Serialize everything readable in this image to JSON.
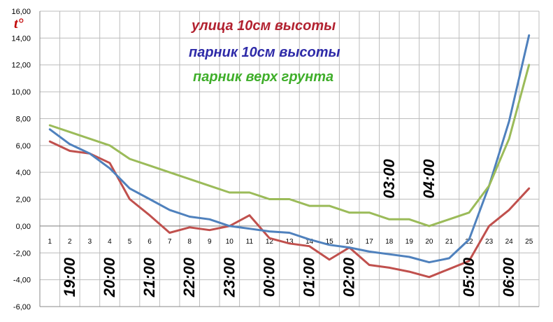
{
  "chart_data": {
    "type": "line",
    "ylabel": "t°",
    "ylim": [
      -6,
      16
    ],
    "ytick_step": 2,
    "yticks": [
      "-6,00",
      "-4,00",
      "-2,00",
      "0,00",
      "2,00",
      "4,00",
      "6,00",
      "8,00",
      "10,00",
      "12,00",
      "14,00",
      "16,00"
    ],
    "categories": [
      "1",
      "2",
      "3",
      "4",
      "5",
      "6",
      "7",
      "8",
      "9",
      "10",
      "11",
      "12",
      "13",
      "14",
      "15",
      "16",
      "17",
      "18",
      "19",
      "20",
      "21",
      "22",
      "23",
      "24",
      "25"
    ],
    "grid": true,
    "series": [
      {
        "name": "улица 10см высоты",
        "color": "#c0504d",
        "values": [
          6.3,
          5.6,
          5.4,
          4.7,
          2.0,
          0.8,
          -0.5,
          -0.1,
          -0.3,
          0.0,
          0.8,
          -0.9,
          -1.3,
          -1.5,
          -2.5,
          -1.6,
          -2.9,
          -3.1,
          -3.4,
          -3.8,
          -3.2,
          -2.6,
          0.0,
          1.2,
          2.8
        ]
      },
      {
        "name": "парник 10см высоты",
        "color": "#4f81bd",
        "values": [
          7.2,
          6.1,
          5.4,
          4.3,
          2.8,
          2.0,
          1.2,
          0.7,
          0.5,
          0.0,
          -0.2,
          -0.4,
          -0.5,
          -1.0,
          -1.4,
          -1.6,
          -1.9,
          -2.1,
          -2.3,
          -2.7,
          -2.4,
          -1.0,
          3.0,
          7.8,
          14.2
        ]
      },
      {
        "name": "парник верх грунта",
        "color": "#9bbb59",
        "values": [
          7.5,
          7.0,
          6.5,
          6.0,
          5.0,
          4.5,
          4.0,
          3.5,
          3.0,
          2.5,
          2.5,
          2.0,
          2.0,
          1.5,
          1.5,
          1.0,
          1.0,
          0.5,
          0.5,
          0.0,
          0.5,
          1.0,
          3.0,
          6.5,
          12.0
        ]
      }
    ],
    "legend_colors": [
      "#b22230",
      "#2e2aa8",
      "#3fae2a"
    ],
    "time_labels": [
      {
        "text": "19:00",
        "x": 2,
        "pos": "below"
      },
      {
        "text": "20:00",
        "x": 4,
        "pos": "below"
      },
      {
        "text": "21:00",
        "x": 6,
        "pos": "below"
      },
      {
        "text": "22:00",
        "x": 8,
        "pos": "below"
      },
      {
        "text": "23:00",
        "x": 10,
        "pos": "below"
      },
      {
        "text": "00:00",
        "x": 12,
        "pos": "below"
      },
      {
        "text": "01:00",
        "x": 14,
        "pos": "below"
      },
      {
        "text": "02:00",
        "x": 16,
        "pos": "below"
      },
      {
        "text": "03:00",
        "x": 18,
        "pos": "above"
      },
      {
        "text": "04:00",
        "x": 20,
        "pos": "above"
      },
      {
        "text": "05:00",
        "x": 22,
        "pos": "below"
      },
      {
        "text": "06:00",
        "x": 24,
        "pos": "below"
      }
    ]
  }
}
